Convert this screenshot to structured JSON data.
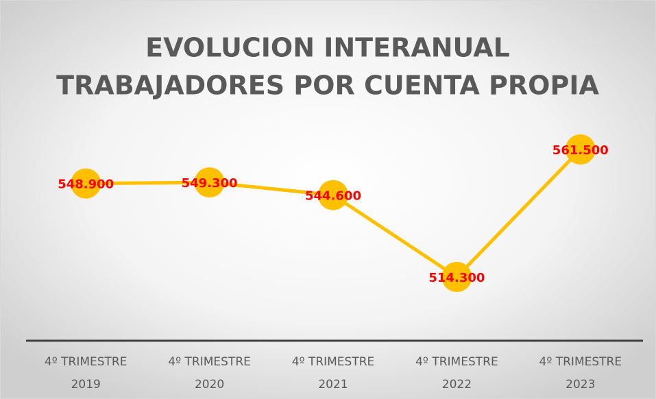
{
  "chart_data": {
    "type": "line",
    "title": [
      "EVOLUCION INTERANUAL",
      "TRABAJADORES POR CUENTA PROPIA"
    ],
    "categories": [
      [
        "4º TRIMESTRE",
        "2019"
      ],
      [
        "4º TRIMESTRE",
        "2020"
      ],
      [
        "4º TRIMESTRE",
        "2021"
      ],
      [
        "4º TRIMESTRE",
        "2022"
      ],
      [
        "4º TRIMESTRE",
        "2023"
      ]
    ],
    "values": [
      548900,
      549300,
      544600,
      514300,
      561500
    ],
    "value_labels": [
      "548.900",
      "549.300",
      "544.600",
      "514.300",
      "561.500"
    ],
    "color": "#FFC000",
    "label_color": "#FF0000"
  }
}
